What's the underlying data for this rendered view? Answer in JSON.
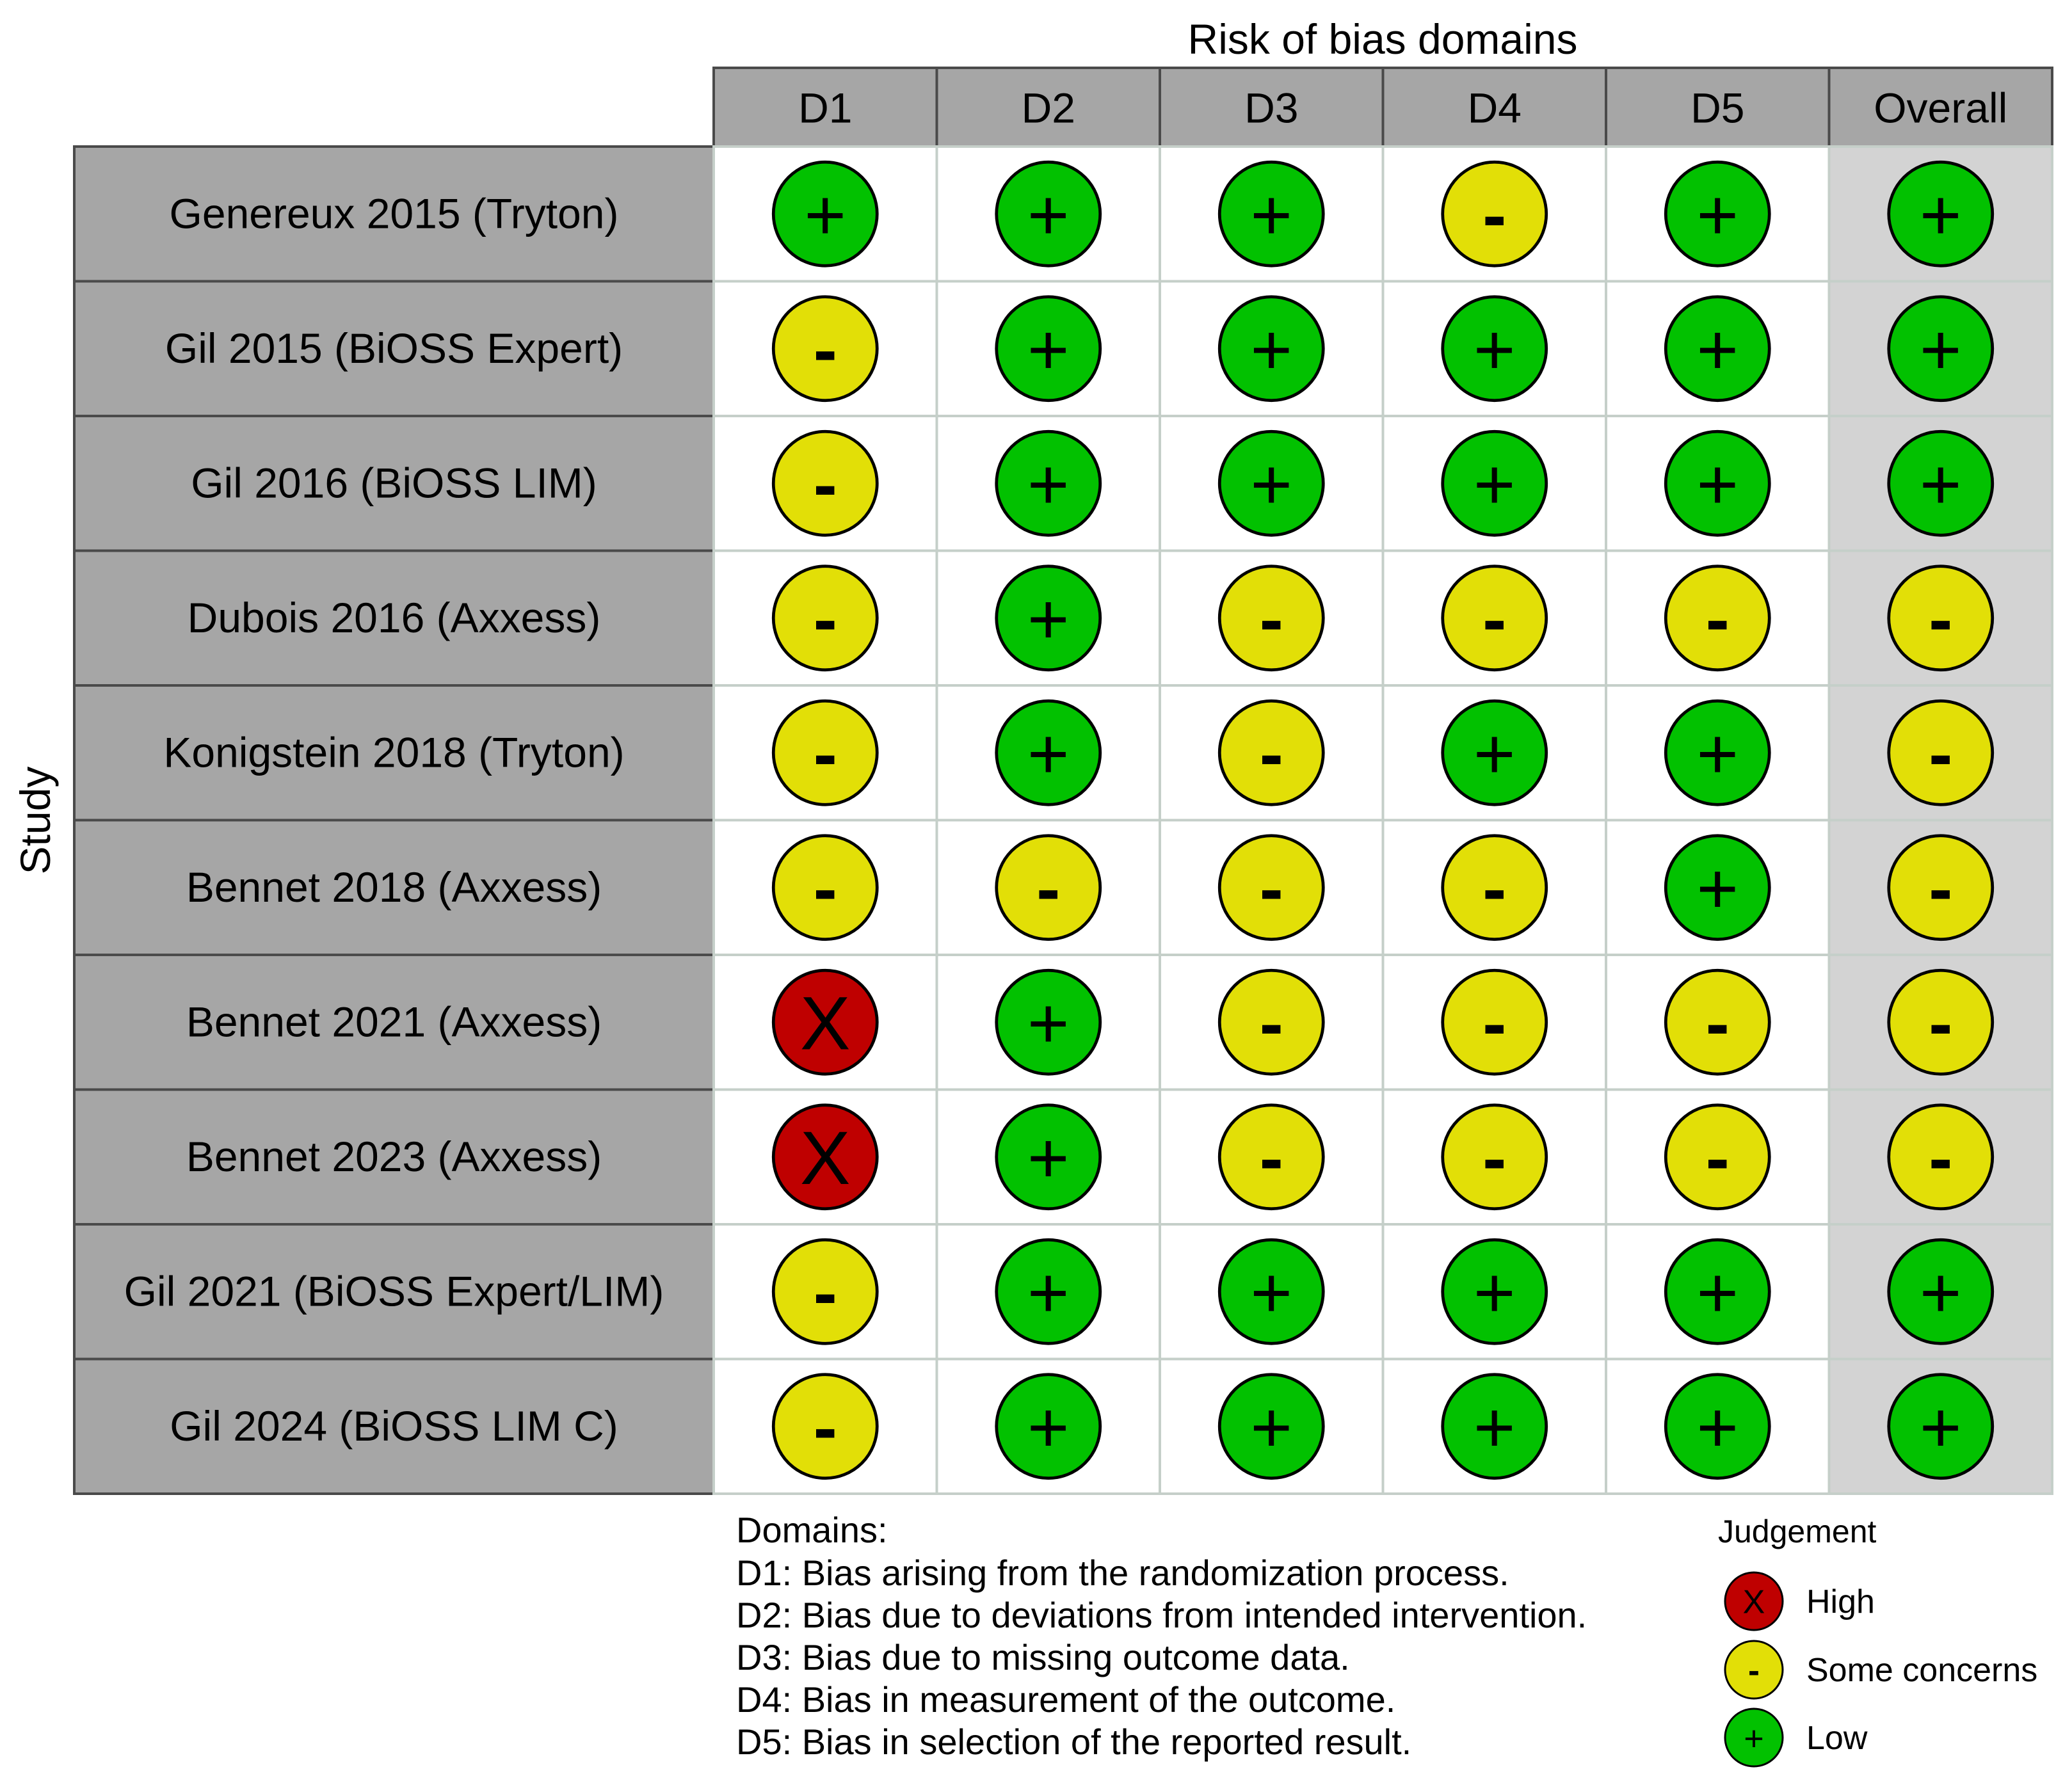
{
  "chart_data": {
    "type": "table",
    "title": "Risk of bias domains",
    "y_axis_label": "Study",
    "columns": [
      "D1",
      "D2",
      "D3",
      "D4",
      "D5",
      "Overall"
    ],
    "studies": [
      "Genereux 2015 (Tryton)",
      "Gil 2015 (BiOSS Expert)",
      "Gil 2016 (BiOSS LIM)",
      "Dubois 2016 (Axxess)",
      "Konigstein 2018 (Tryton)",
      "Bennet 2018 (Axxess)",
      "Bennet 2021 (Axxess)",
      "Bennet 2023 (Axxess)",
      "Gil 2021 (BiOSS Expert/LIM)",
      "Gil 2024 (BiOSS LIM C)"
    ],
    "judgements": [
      [
        "Low",
        "Low",
        "Low",
        "Some concerns",
        "Low",
        "Low"
      ],
      [
        "Some concerns",
        "Low",
        "Low",
        "Low",
        "Low",
        "Low"
      ],
      [
        "Some concerns",
        "Low",
        "Low",
        "Low",
        "Low",
        "Low"
      ],
      [
        "Some concerns",
        "Low",
        "Some concerns",
        "Some concerns",
        "Some concerns",
        "Some concerns"
      ],
      [
        "Some concerns",
        "Low",
        "Some concerns",
        "Low",
        "Low",
        "Some concerns"
      ],
      [
        "Some concerns",
        "Some concerns",
        "Some concerns",
        "Some concerns",
        "Low",
        "Some concerns"
      ],
      [
        "High",
        "Low",
        "Some concerns",
        "Some concerns",
        "Some concerns",
        "Some concerns"
      ],
      [
        "High",
        "Low",
        "Some concerns",
        "Some concerns",
        "Some concerns",
        "Some concerns"
      ],
      [
        "Some concerns",
        "Low",
        "Low",
        "Low",
        "Low",
        "Low"
      ],
      [
        "Some concerns",
        "Low",
        "Low",
        "Low",
        "Low",
        "Low"
      ]
    ],
    "domains_legend": {
      "heading": "Domains:",
      "items": [
        "D1: Bias arising from the randomization process.",
        "D2: Bias due to deviations from intended intervention.",
        "D3: Bias due to missing outcome data.",
        "D4: Bias in measurement of the outcome.",
        "D5: Bias in selection of the reported result."
      ]
    },
    "judgement_legend": {
      "title": "Judgement",
      "items": [
        {
          "key": "High",
          "label": "High"
        },
        {
          "key": "Some concerns",
          "label": "Some concerns"
        },
        {
          "key": "Low",
          "label": "Low"
        }
      ]
    },
    "symbols": {
      "High": "X",
      "Some concerns": "-",
      "Low": "+"
    },
    "colors": {
      "High": "#bf0000",
      "Some concerns": "#e2df07",
      "Low": "#02c100",
      "header_fill": "#a6a6a6",
      "overall_fill": "#d3d3d3",
      "cell_fill": "#ffffff",
      "grid": "#c5cfc9",
      "border": "#4a4a4a"
    }
  }
}
